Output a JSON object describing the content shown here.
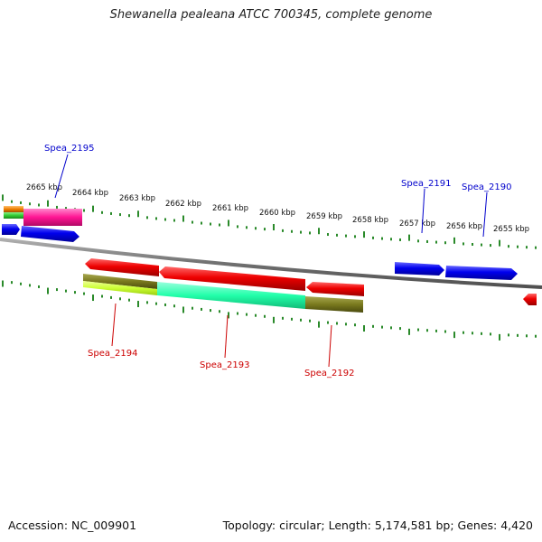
{
  "title": "Shewanella pealeana ATCC 700345, complete genome",
  "footer": {
    "accession": "Accession: NC_009901",
    "stats": "Topology: circular; Length: 5,174,581 bp; Genes: 4,420"
  },
  "ticks": [
    {
      "label": "2665 kbp"
    },
    {
      "label": "2664 kbp"
    },
    {
      "label": "2663 kbp"
    },
    {
      "label": "2662 kbp"
    },
    {
      "label": "2661 kbp"
    },
    {
      "label": "2660 kbp"
    },
    {
      "label": "2659 kbp"
    },
    {
      "label": "2658 kbp"
    },
    {
      "label": "2657 kbp"
    },
    {
      "label": "2656 kbp"
    },
    {
      "label": "2655 kbp"
    }
  ],
  "gene_labels": {
    "spea_2195": "Spea_2195",
    "spea_2194": "Spea_2194",
    "spea_2193": "Spea_2193",
    "spea_2192": "Spea_2192",
    "spea_2191": "Spea_2191",
    "spea_2190": "Spea_2190"
  },
  "colors": {
    "forward_gene": "#0000ee",
    "reverse_gene": "#ee0000",
    "backbone": "#808080",
    "tick": "#2a8a2a",
    "cog_pink": "#ff1493",
    "cog_green": "#33cc33",
    "cog_orange": "#f08000",
    "cog_olive": "#7a7a1e",
    "cog_lime": "#ccff33",
    "cog_aqua": "#22ffaa"
  }
}
